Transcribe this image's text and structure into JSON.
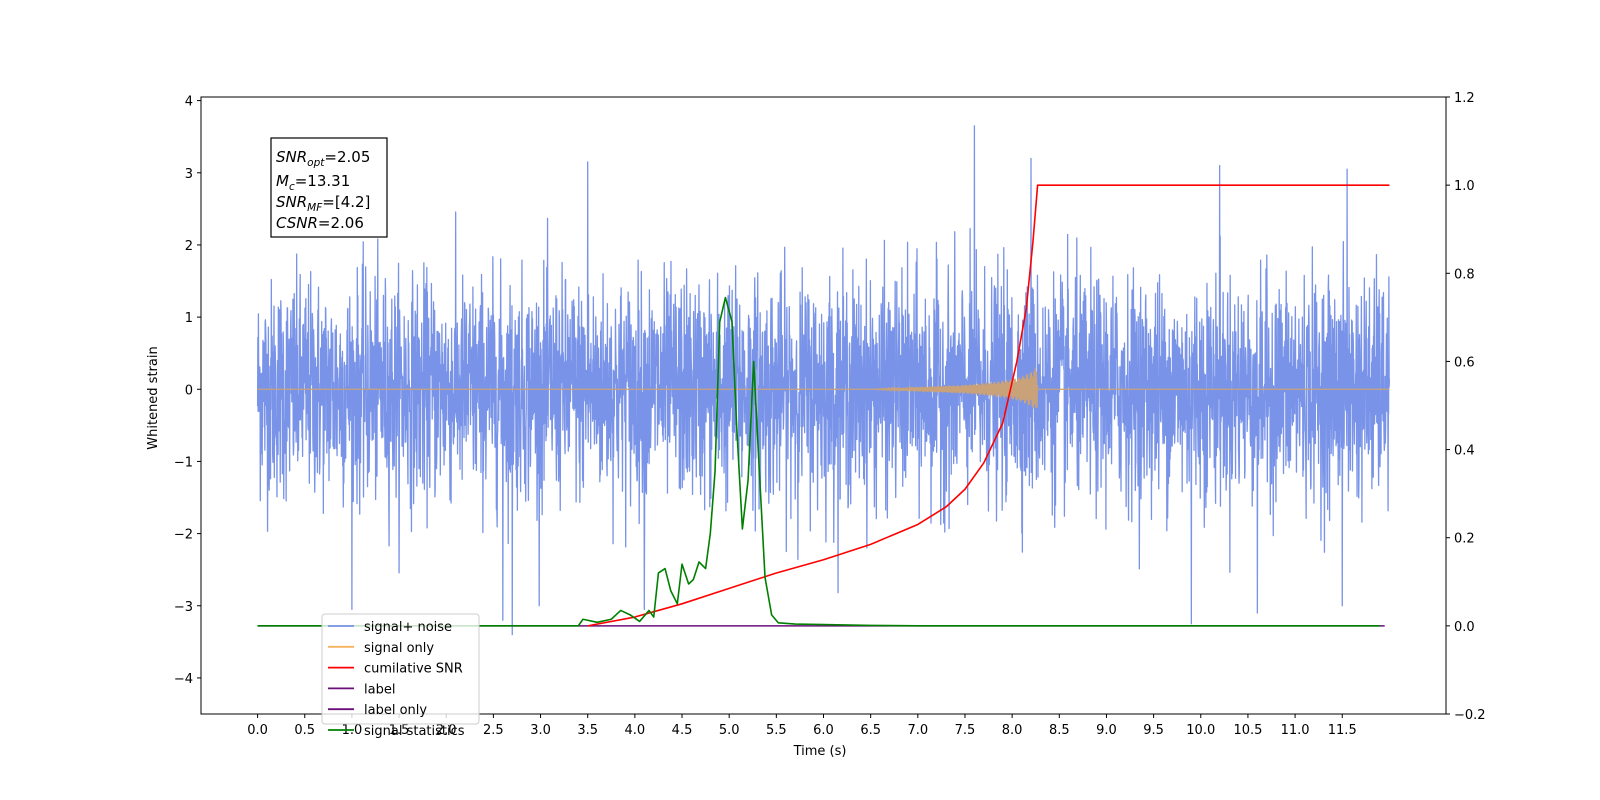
{
  "chart_data": {
    "type": "line",
    "xlabel": "Time (s)",
    "ylabel": "Whitened strain",
    "xlim": [
      -0.6,
      12.6
    ],
    "ylim": [
      -4.5,
      4.05
    ],
    "y2lim": [
      -0.2,
      1.2
    ],
    "x_ticks": [
      0.0,
      0.5,
      1.0,
      1.5,
      2.0,
      2.5,
      3.0,
      3.5,
      4.0,
      4.5,
      5.0,
      5.5,
      6.0,
      6.5,
      7.0,
      7.5,
      8.0,
      8.5,
      9.0,
      9.5,
      10.0,
      10.5,
      11.0,
      11.5
    ],
    "x_tick_labels": [
      "0.0",
      "0.5",
      "1.0",
      "1.5",
      "2.0",
      "2.5",
      "3.0",
      "3.5",
      "4.0",
      "4.5",
      "5.0",
      "5.5",
      "6.0",
      "6.5",
      "7.0",
      "7.5",
      "8.0",
      "8.5",
      "9.0",
      "9.5",
      "10.0",
      "10.5",
      "11.0",
      "11.5"
    ],
    "y_ticks": [
      4,
      3,
      2,
      1,
      0,
      -1,
      -2,
      -3,
      -4
    ],
    "y_tick_labels": [
      "4",
      "3",
      "2",
      "1",
      "0",
      "−1",
      "−2",
      "−3",
      "−4"
    ],
    "y2_ticks": [
      1.2,
      1.0,
      0.8,
      0.6,
      0.4,
      0.2,
      0.0,
      -0.2
    ],
    "y2_tick_labels": [
      "1.2",
      "1.0",
      "0.8",
      "0.6",
      "0.4",
      "0.2",
      "0.0",
      "−0.2"
    ],
    "grid": false,
    "legend_position": "lower-left",
    "annotation": {
      "snr_opt": {
        "base": "SNR",
        "sub": "opt",
        "value": "=2.05"
      },
      "mc": {
        "base": "M",
        "sub": "c",
        "value": "=13.31"
      },
      "snr_mf": {
        "base": "SNR",
        "sub": "MF",
        "value": "=[4.2]"
      },
      "csnr": {
        "base": "CSNR",
        "value": "=2.06"
      }
    },
    "series": [
      {
        "name": "signal+ noise",
        "color": "#7893e8",
        "axis": "left",
        "description_stats": {
          "x_range": [
            0.0,
            12.0
          ],
          "mean": 0.0,
          "std": 0.75
        },
        "extreme_points": [
          [
            7.6,
            3.65
          ],
          [
            3.5,
            3.15
          ],
          [
            8.2,
            3.2
          ],
          [
            10.2,
            3.1
          ],
          [
            10.6,
            3.0
          ],
          [
            11.55,
            3.05
          ],
          [
            1.0,
            -3.05
          ],
          [
            2.7,
            -3.4
          ],
          [
            2.6,
            -3.2
          ],
          [
            9.9,
            -3.25
          ],
          [
            10.6,
            -3.1
          ],
          [
            11.5,
            -3.0
          ],
          [
            4.1,
            -3.05
          ]
        ]
      },
      {
        "name": "signal only",
        "color": "#f5b25f",
        "axis": "left",
        "points": [
          [
            0.0,
            0.0
          ],
          [
            6.5,
            0.0
          ],
          [
            7.0,
            0.03
          ],
          [
            7.5,
            0.06
          ],
          [
            7.8,
            0.1
          ],
          [
            8.0,
            0.14
          ],
          [
            8.1,
            0.18
          ],
          [
            8.2,
            0.24
          ],
          [
            8.26,
            0.32
          ],
          [
            8.28,
            0.0
          ],
          [
            12.0,
            0.0
          ]
        ]
      },
      {
        "name": "cumilative SNR",
        "color": "#ff0000",
        "axis": "right",
        "points": [
          [
            3.5,
            0.0
          ],
          [
            4.0,
            0.02
          ],
          [
            4.5,
            0.05
          ],
          [
            5.0,
            0.085
          ],
          [
            5.5,
            0.12
          ],
          [
            6.0,
            0.15
          ],
          [
            6.5,
            0.185
          ],
          [
            7.0,
            0.23
          ],
          [
            7.3,
            0.27
          ],
          [
            7.5,
            0.31
          ],
          [
            7.7,
            0.37
          ],
          [
            7.9,
            0.46
          ],
          [
            8.05,
            0.6
          ],
          [
            8.15,
            0.72
          ],
          [
            8.22,
            0.87
          ],
          [
            8.27,
            1.0
          ],
          [
            12.0,
            1.0
          ]
        ]
      },
      {
        "name": "label",
        "color": "#6a0f7a",
        "axis": "right",
        "points": [
          [
            0.0,
            0.0
          ],
          [
            11.95,
            0.0
          ]
        ]
      },
      {
        "name": "label only",
        "color": "#6a0f7a",
        "axis": "right",
        "legend_only": true
      },
      {
        "name": "signal statistics",
        "color": "#008000",
        "axis": "right",
        "points": [
          [
            0.0,
            0.0
          ],
          [
            3.0,
            0.0
          ],
          [
            3.4,
            0.0
          ],
          [
            3.45,
            0.015
          ],
          [
            3.6,
            0.008
          ],
          [
            3.75,
            0.015
          ],
          [
            3.85,
            0.035
          ],
          [
            3.95,
            0.025
          ],
          [
            4.05,
            0.01
          ],
          [
            4.15,
            0.035
          ],
          [
            4.2,
            0.02
          ],
          [
            4.25,
            0.12
          ],
          [
            4.32,
            0.13
          ],
          [
            4.38,
            0.08
          ],
          [
            4.45,
            0.05
          ],
          [
            4.5,
            0.14
          ],
          [
            4.57,
            0.095
          ],
          [
            4.62,
            0.105
          ],
          [
            4.68,
            0.145
          ],
          [
            4.75,
            0.13
          ],
          [
            4.8,
            0.21
          ],
          [
            4.85,
            0.35
          ],
          [
            4.9,
            0.69
          ],
          [
            4.96,
            0.745
          ],
          [
            5.03,
            0.69
          ],
          [
            5.08,
            0.45
          ],
          [
            5.14,
            0.22
          ],
          [
            5.2,
            0.33
          ],
          [
            5.26,
            0.6
          ],
          [
            5.32,
            0.35
          ],
          [
            5.38,
            0.11
          ],
          [
            5.45,
            0.025
          ],
          [
            5.52,
            0.007
          ],
          [
            5.7,
            0.004
          ],
          [
            6.0,
            0.003
          ],
          [
            6.5,
            0.001
          ],
          [
            7.0,
            0.0
          ],
          [
            11.9,
            0.0
          ]
        ]
      }
    ]
  }
}
